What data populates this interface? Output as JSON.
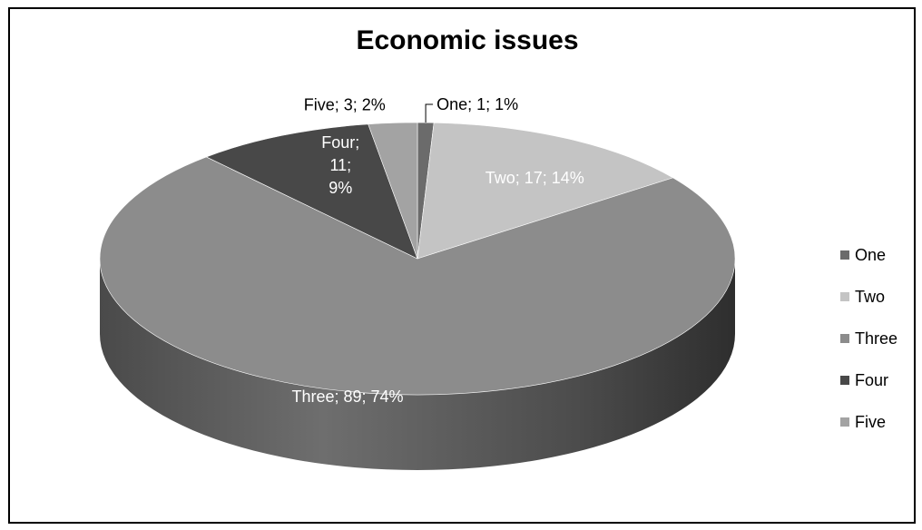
{
  "chart_data": {
    "type": "pie",
    "title": "Economic issues",
    "legend_position": "right",
    "slices": [
      {
        "name": "One",
        "value": 1,
        "percent": 1,
        "label": "One; 1; 1%",
        "color": "#6b6b6b",
        "label_color": "#000000"
      },
      {
        "name": "Two",
        "value": 17,
        "percent": 14,
        "label": "Two; 17; 14%",
        "color": "#c4c4c4",
        "label_color": "#ffffff"
      },
      {
        "name": "Three",
        "value": 89,
        "percent": 74,
        "label": "Three; 89; 74%",
        "color": "#8c8c8c",
        "label_color": "#ffffff"
      },
      {
        "name": "Four",
        "value": 11,
        "percent": 9,
        "label": "Four; 11; 9%",
        "color": "#484848",
        "label_color": "#ffffff"
      },
      {
        "name": "Five",
        "value": 3,
        "percent": 2,
        "label": "Five; 3; 2%",
        "color": "#a3a3a3",
        "label_color": "#000000"
      }
    ]
  }
}
